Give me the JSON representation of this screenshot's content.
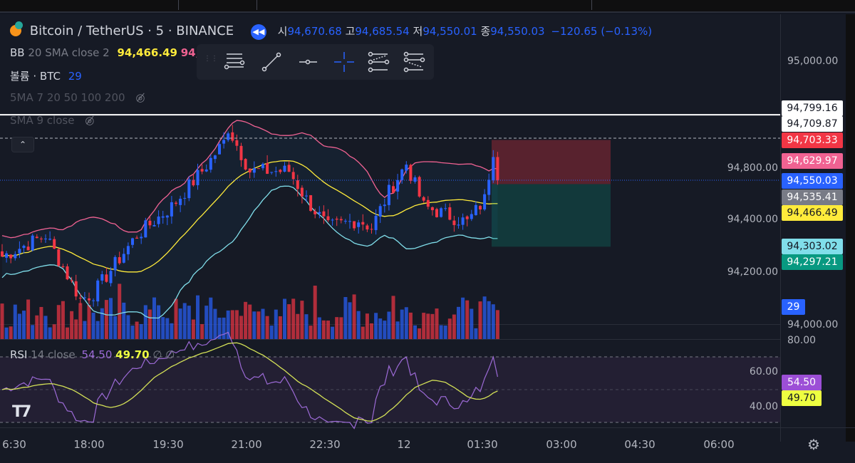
{
  "symbol": {
    "title": "Bitcoin / TetherUS · 5 · BINANCE",
    "open_label": "시",
    "open": "94,670.68",
    "high_label": "고",
    "high": "94,685.54",
    "low_label": "저",
    "low": "94,550.01",
    "close_label": "종",
    "close": "94,550.03",
    "change": "−120.65 (−0.13%)"
  },
  "indicators": {
    "bb": {
      "name": "BB",
      "params": "20 SMA close 2",
      "basis": "94,466.49",
      "upper_partial": "94,6"
    },
    "volume": {
      "name": "볼륨 · BTC",
      "value": "29"
    },
    "ma5": {
      "name": "5MA 7 20 50 100 200"
    },
    "sma9": {
      "name": "SMA 9 close"
    },
    "rsi": {
      "name": "RSI",
      "params": "14 close",
      "value": "54.50",
      "ma": "49.70",
      "extra1": "∅",
      "extra2": "∅"
    }
  },
  "price_labels": [
    {
      "text": "94,799.16",
      "bg": "#ffffff",
      "fg": "#131722"
    },
    {
      "text": "94,709.87",
      "bg": "#ffffff",
      "fg": "#131722"
    },
    {
      "text": "94,703.33",
      "bg": "#f23645",
      "fg": "#ffffff"
    },
    {
      "text": "94,629.97",
      "bg": "#f06292",
      "fg": "#ffffff"
    },
    {
      "text": "94,550.03",
      "bg": "#2962ff",
      "fg": "#ffffff"
    },
    {
      "text": "94,535.41",
      "bg": "#787b86",
      "fg": "#ffffff"
    },
    {
      "text": "94,466.49",
      "bg": "#ffeb3b",
      "fg": "#131722"
    },
    {
      "text": "94,303.02",
      "bg": "#80deea",
      "fg": "#131722"
    },
    {
      "text": "94,297.21",
      "bg": "#089981",
      "fg": "#ffffff"
    }
  ],
  "volume_label": {
    "text": "29",
    "bg": "#2962ff"
  },
  "rsi_labels": [
    {
      "text": "54.50",
      "bg": "#9c4fd6",
      "fg": "#ffffff"
    },
    {
      "text": "49.70",
      "bg": "#eeff41",
      "fg": "#131722"
    }
  ],
  "price_scale": [
    "95,000.00",
    "94,800.00",
    "94,400.00",
    "94,200.00",
    "94,000.00"
  ],
  "rsi_scale": [
    "80.00",
    "60.00",
    "40.00"
  ],
  "time_axis": [
    "6:30",
    "18:00",
    "19:30",
    "21:00",
    "22:30",
    "12",
    "01:30",
    "03:00",
    "04:30",
    "06:00"
  ],
  "colors": {
    "up": "#2962ff",
    "down": "#f23645",
    "bb_upper": "#f06292",
    "bb_basis": "#ffeb3b",
    "bb_lower": "#80deea",
    "rsi": "#9c6ad6",
    "rsi_ma": "#d4e157"
  },
  "chart_data": {
    "type": "candlestick",
    "interval_minutes": 5,
    "price_range": [
      93900,
      95050
    ],
    "close_path": [
      [
        0,
        94260
      ],
      [
        10,
        94341
      ],
      [
        18,
        94098
      ],
      [
        21,
        94120
      ],
      [
        31,
        94341
      ],
      [
        39,
        94450
      ],
      [
        46,
        94585
      ],
      [
        51,
        94694
      ],
      [
        52,
        94750
      ],
      [
        57,
        94585
      ],
      [
        66,
        94585
      ],
      [
        70,
        94477
      ],
      [
        75,
        94370
      ],
      [
        82,
        94400
      ],
      [
        85,
        94370
      ],
      [
        89,
        94505
      ],
      [
        93,
        94613
      ],
      [
        97,
        94450
      ],
      [
        102,
        94420
      ],
      [
        107,
        94390
      ],
      [
        111,
        94477
      ],
      [
        113,
        94666
      ],
      [
        114,
        94550
      ]
    ],
    "hlines": [
      94799.16,
      94709.87
    ],
    "position": {
      "entry": 94535.41,
      "stop": 94703.33,
      "target": 94297.21
    },
    "rsi_levels": [
      70,
      50,
      30
    ]
  }
}
